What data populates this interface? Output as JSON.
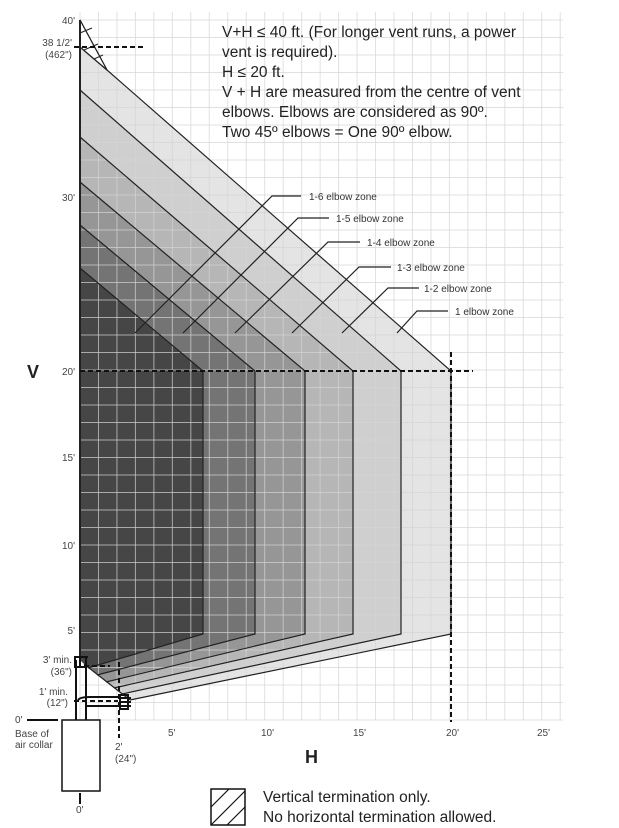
{
  "notes": [
    "V+H ≤ 40 ft. (For longer vent runs, a power",
    "vent is required).",
    "H ≤ 20 ft.",
    "V + H are measured from the centre of vent",
    "elbows. Elbows are considered as 90º.",
    "Two 45º elbows = One 90º elbow."
  ],
  "axes": {
    "v_label": "V",
    "h_label": "H",
    "v_ticks": [
      "40'",
      "30'",
      "20'",
      "15'",
      "10'",
      "5'"
    ],
    "h_ticks": [
      "5'",
      "10'",
      "15'",
      "20'",
      "25'"
    ],
    "max_vertical": [
      "38 1/2'",
      "(462\")"
    ],
    "min_vertical": [
      "3' min.",
      "(36\")"
    ],
    "min_horizontal_height": [
      "1' min.",
      "(12\")"
    ],
    "min_horizontal": [
      "2'",
      "(24\")"
    ],
    "origin_v": "0'",
    "origin_h": "0'",
    "base": [
      "Base of",
      "air collar"
    ]
  },
  "zones": [
    {
      "label": "1 elbow zone",
      "color": "#e4e4e4"
    },
    {
      "label": "1-2 elbow zone",
      "color": "#cfcfcf"
    },
    {
      "label": "1-3 elbow zone",
      "color": "#b6b6b6"
    },
    {
      "label": "1-4 elbow zone",
      "color": "#969696"
    },
    {
      "label": "1-5 elbow zone",
      "color": "#747474"
    },
    {
      "label": "1-6 elbow zone",
      "color": "#464646"
    }
  ],
  "legend": {
    "icon": "hatched-square",
    "lines": [
      "Vertical termination only.",
      "No horizontal termination allowed."
    ]
  }
}
